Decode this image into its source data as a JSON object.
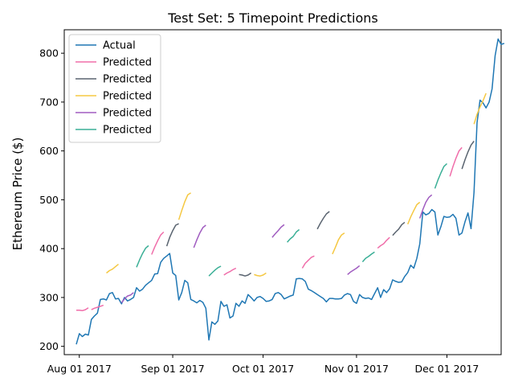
{
  "chart_data": {
    "type": "line",
    "title": "Test Set: 5 Timepoint Predictions",
    "xlabel": "",
    "ylabel": "Ethereum Price ($)",
    "x_ticks": [
      "Aug 01 2017",
      "Sep 01 2017",
      "Oct 01 2017",
      "Nov 01 2017",
      "Dec 01 2017"
    ],
    "y_ticks": [
      200,
      300,
      400,
      500,
      600,
      700,
      800
    ],
    "xlim": [
      "2017-07-27",
      "2017-12-19"
    ],
    "ylim": [
      183,
      848
    ],
    "grid": false,
    "legend_position": "top-left",
    "legend": [
      "Actual",
      "Predicted",
      "Predicted",
      "Predicted",
      "Predicted",
      "Predicted"
    ],
    "colors": {
      "actual": "#1f77b4",
      "predicted": [
        "#f06eaa",
        "#5a6470",
        "#f5c842",
        "#a05cc0",
        "#3aaf96"
      ]
    },
    "actual": {
      "x_start": "2017-07-31",
      "values": [
        204,
        226,
        220,
        225,
        223,
        255,
        262,
        268,
        296,
        297,
        295,
        308,
        310,
        297,
        298,
        287,
        300,
        293,
        296,
        300,
        320,
        313,
        317,
        325,
        330,
        335,
        348,
        349,
        372,
        380,
        385,
        390,
        350,
        345,
        295,
        310,
        335,
        330,
        296,
        293,
        289,
        294,
        290,
        278,
        213,
        250,
        245,
        252,
        292,
        282,
        285,
        258,
        262,
        288,
        282,
        293,
        288,
        306,
        300,
        293,
        300,
        302,
        298,
        292,
        293,
        296,
        308,
        310,
        306,
        297,
        300,
        303,
        305,
        338,
        339,
        338,
        333,
        317,
        314,
        310,
        306,
        302,
        298,
        291,
        298,
        298,
        297,
        297,
        298,
        305,
        308,
        306,
        292,
        288,
        306,
        300,
        298,
        299,
        296,
        308,
        320,
        300,
        316,
        310,
        318,
        336,
        333,
        331,
        332,
        343,
        351,
        366,
        360,
        380,
        410,
        475,
        469,
        472,
        480,
        475,
        428,
        445,
        466,
        464,
        465,
        470,
        462,
        428,
        432,
        455,
        473,
        441,
        515,
        658,
        704,
        698,
        688,
        700,
        727,
        795,
        829,
        818,
        820
      ]
    },
    "predictions": [
      {
        "series": 0,
        "x_start": "2017-07-31",
        "values": [
          274,
          274,
          273,
          275,
          279
        ]
      },
      {
        "series": 0,
        "x_start": "2017-08-05",
        "values": [
          275,
          278,
          280,
          282,
          284
        ]
      },
      {
        "series": 2,
        "x_start": "2017-08-10",
        "values": [
          350,
          355,
          358,
          363,
          368
        ]
      },
      {
        "series": 3,
        "x_start": "2017-08-15",
        "values": [
          289,
          297,
          303,
          305,
          310
        ]
      },
      {
        "series": 4,
        "x_start": "2017-08-20",
        "values": [
          362,
          377,
          390,
          401,
          406
        ]
      },
      {
        "series": 0,
        "x_start": "2017-08-25",
        "values": [
          388,
          403,
          416,
          428,
          434
        ]
      },
      {
        "series": 1,
        "x_start": "2017-08-30",
        "values": [
          405,
          423,
          437,
          448,
          451
        ]
      },
      {
        "series": 2,
        "x_start": "2017-09-03",
        "values": [
          459,
          478,
          496,
          510,
          514
        ]
      },
      {
        "series": 3,
        "x_start": "2017-09-08",
        "values": [
          402,
          418,
          432,
          443,
          448
        ]
      },
      {
        "series": 4,
        "x_start": "2017-09-13",
        "values": [
          344,
          350,
          356,
          361,
          364
        ]
      },
      {
        "series": 0,
        "x_start": "2017-09-18",
        "values": [
          346,
          350,
          353,
          357,
          360
        ]
      },
      {
        "series": 1,
        "x_start": "2017-09-23",
        "values": [
          347,
          346,
          344,
          346,
          350
        ]
      },
      {
        "series": 2,
        "x_start": "2017-09-28",
        "values": [
          347,
          345,
          344,
          346,
          350
        ]
      },
      {
        "series": 3,
        "x_start": "2017-10-04",
        "values": [
          423,
          430,
          437,
          444,
          449
        ]
      },
      {
        "series": 4,
        "x_start": "2017-10-09",
        "values": [
          413,
          420,
          425,
          434,
          439
        ]
      },
      {
        "series": 0,
        "x_start": "2017-10-14",
        "values": [
          360,
          370,
          376,
          382,
          385
        ]
      },
      {
        "series": 1,
        "x_start": "2017-10-19",
        "values": [
          440,
          452,
          462,
          471,
          476
        ]
      },
      {
        "series": 2,
        "x_start": "2017-10-24",
        "values": [
          389,
          403,
          418,
          428,
          432
        ]
      },
      {
        "series": 3,
        "x_start": "2017-10-29",
        "values": [
          347,
          352,
          356,
          360,
          365
        ]
      },
      {
        "series": 4,
        "x_start": "2017-11-03",
        "values": [
          373,
          380,
          384,
          389,
          393
        ]
      },
      {
        "series": 0,
        "x_start": "2017-11-08",
        "values": [
          401,
          406,
          410,
          417,
          423
        ]
      },
      {
        "series": 1,
        "x_start": "2017-11-13",
        "values": [
          427,
          434,
          440,
          449,
          454
        ]
      },
      {
        "series": 2,
        "x_start": "2017-11-18",
        "values": [
          450,
          465,
          478,
          490,
          495
        ]
      },
      {
        "series": 3,
        "x_start": "2017-11-22",
        "values": [
          462,
          480,
          495,
          505,
          510
        ]
      },
      {
        "series": 4,
        "x_start": "2017-11-27",
        "values": [
          523,
          540,
          555,
          568,
          574
        ]
      },
      {
        "series": 0,
        "x_start": "2017-12-02",
        "values": [
          548,
          568,
          585,
          600,
          607
        ]
      },
      {
        "series": 1,
        "x_start": "2017-12-06",
        "values": [
          563,
          582,
          598,
          612,
          620
        ]
      },
      {
        "series": 2,
        "x_start": "2017-12-10",
        "values": [
          655,
          675,
          690,
          703,
          718
        ]
      }
    ]
  }
}
